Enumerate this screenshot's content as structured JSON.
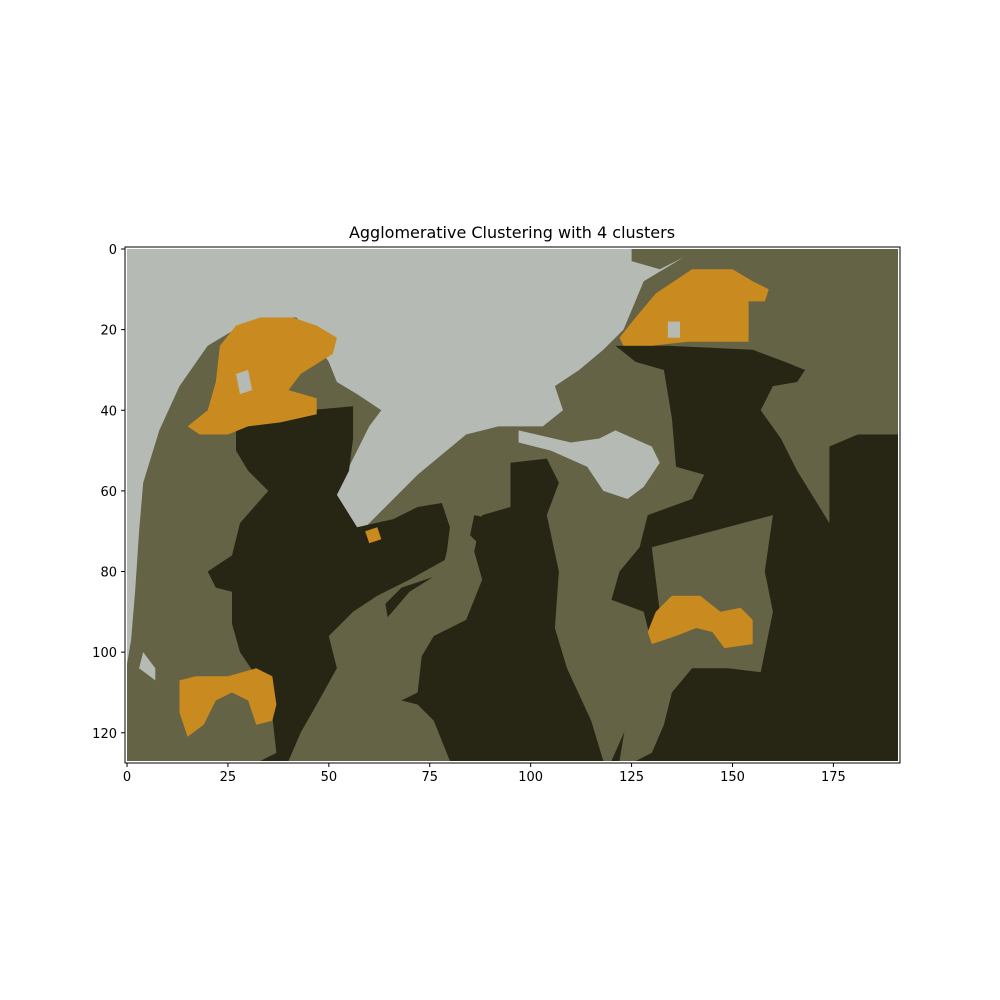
{
  "chart_data": {
    "type": "heatmap",
    "title": "Agglomerative Clustering with 4 clusters",
    "xlabel": "",
    "ylabel": "",
    "xlim": [
      -0.5,
      191.5
    ],
    "ylim": [
      127.5,
      -0.5
    ],
    "xticks": [
      0,
      25,
      50,
      75,
      100,
      125,
      150,
      175
    ],
    "yticks": [
      0,
      20,
      40,
      60,
      80,
      100,
      120
    ],
    "xtick_labels": [
      "0",
      "25",
      "50",
      "75",
      "100",
      "125",
      "150",
      "175"
    ],
    "ytick_labels": [
      "0",
      "20",
      "40",
      "60",
      "80",
      "100",
      "120"
    ],
    "image_shape": [
      128,
      192
    ],
    "grid": false,
    "cluster_colors": {
      "sky": "#b5bab4",
      "midtone": "#646346",
      "dark": "#272615",
      "orange": "#c98a20"
    },
    "regions": [
      {
        "cluster": "midtone",
        "points": [
          [
            0,
            0
          ],
          [
            191,
            0
          ],
          [
            191,
            127
          ],
          [
            0,
            127
          ]
        ]
      },
      {
        "cluster": "sky",
        "points": [
          [
            0,
            0
          ],
          [
            125,
            0
          ],
          [
            125,
            3
          ],
          [
            132,
            5
          ],
          [
            138,
            2
          ],
          [
            128,
            8
          ],
          [
            123,
            20
          ],
          [
            118,
            25
          ],
          [
            112,
            30
          ],
          [
            106,
            34
          ],
          [
            108,
            40
          ],
          [
            103,
            44
          ],
          [
            92,
            44
          ],
          [
            84,
            46
          ],
          [
            72,
            56
          ],
          [
            62,
            66
          ],
          [
            58,
            70
          ],
          [
            55,
            68
          ],
          [
            51,
            62
          ],
          [
            54,
            56
          ],
          [
            57,
            50
          ],
          [
            60,
            44
          ],
          [
            63,
            40
          ],
          [
            57,
            36
          ],
          [
            52,
            33
          ],
          [
            50,
            28
          ],
          [
            46,
            22
          ],
          [
            42,
            17
          ],
          [
            37,
            17
          ],
          [
            30,
            18
          ],
          [
            20,
            24
          ],
          [
            13,
            34
          ],
          [
            8,
            45
          ],
          [
            4,
            58
          ],
          [
            3,
            70
          ],
          [
            2,
            85
          ],
          [
            1,
            97
          ],
          [
            0,
            103
          ]
        ]
      },
      {
        "cluster": "sky",
        "points": [
          [
            97,
            45
          ],
          [
            110,
            48
          ],
          [
            117,
            47
          ],
          [
            121,
            45
          ],
          [
            130,
            49
          ],
          [
            132,
            53
          ],
          [
            128,
            59
          ],
          [
            124,
            62
          ],
          [
            118,
            60
          ],
          [
            114,
            54
          ],
          [
            105,
            50
          ],
          [
            97,
            48
          ]
        ]
      },
      {
        "cluster": "sky",
        "points": [
          [
            4,
            100
          ],
          [
            7,
            104
          ],
          [
            7,
            107
          ],
          [
            3,
            104
          ]
        ]
      },
      {
        "cluster": "dark",
        "points": [
          [
            27,
            44
          ],
          [
            35,
            43
          ],
          [
            45,
            40
          ],
          [
            56,
            39
          ],
          [
            56,
            47
          ],
          [
            55,
            55
          ],
          [
            52,
            61
          ],
          [
            57,
            69
          ],
          [
            66,
            67
          ],
          [
            72,
            64
          ],
          [
            78,
            63
          ],
          [
            80,
            69
          ],
          [
            79,
            77
          ],
          [
            70,
            82
          ],
          [
            62,
            86
          ],
          [
            56,
            90
          ],
          [
            50,
            96
          ],
          [
            52,
            104
          ],
          [
            47,
            113
          ],
          [
            43,
            120
          ],
          [
            40,
            127
          ],
          [
            18,
            127
          ],
          [
            20,
            122
          ],
          [
            31,
            120
          ],
          [
            34,
            112
          ],
          [
            32,
            106
          ],
          [
            28,
            100
          ],
          [
            26,
            93
          ],
          [
            26,
            85
          ],
          [
            22,
            84
          ],
          [
            20,
            80
          ],
          [
            26,
            76
          ],
          [
            28,
            68
          ],
          [
            35,
            60
          ],
          [
            30,
            55
          ],
          [
            27,
            50
          ]
        ]
      },
      {
        "cluster": "dark",
        "points": [
          [
            121,
            24
          ],
          [
            134,
            24
          ],
          [
            155,
            25
          ],
          [
            163,
            28
          ],
          [
            168,
            30
          ],
          [
            166,
            33
          ],
          [
            160,
            34
          ],
          [
            157,
            40
          ],
          [
            162,
            47
          ],
          [
            166,
            55
          ],
          [
            174,
            68
          ],
          [
            174,
            49
          ],
          [
            181,
            46
          ],
          [
            191,
            46
          ],
          [
            191,
            127
          ],
          [
            120,
            127
          ],
          [
            124,
            118
          ],
          [
            126,
            110
          ],
          [
            130,
            98
          ],
          [
            128,
            90
          ],
          [
            120,
            87
          ],
          [
            122,
            80
          ],
          [
            127,
            74
          ],
          [
            129,
            66
          ],
          [
            140,
            62
          ],
          [
            143,
            56
          ],
          [
            136,
            54
          ],
          [
            135,
            42
          ],
          [
            133,
            30
          ],
          [
            126,
            28
          ]
        ]
      },
      {
        "cluster": "dark",
        "points": [
          [
            95,
            53
          ],
          [
            104,
            52
          ],
          [
            107,
            58
          ],
          [
            104,
            66
          ],
          [
            107,
            80
          ],
          [
            106,
            94
          ],
          [
            109,
            104
          ],
          [
            115,
            117
          ],
          [
            118,
            127
          ],
          [
            80,
            127
          ],
          [
            76,
            117
          ],
          [
            72,
            113
          ],
          [
            68,
            112
          ],
          [
            66,
            100
          ],
          [
            64,
            88
          ],
          [
            68,
            84
          ],
          [
            80,
            80
          ],
          [
            86,
            75
          ],
          [
            88,
            66
          ],
          [
            95,
            64
          ]
        ]
      },
      {
        "cluster": "dark",
        "points": [
          [
            86,
            66
          ],
          [
            91,
            67
          ],
          [
            92,
            72
          ],
          [
            88,
            74
          ],
          [
            85,
            71
          ]
        ]
      },
      {
        "cluster": "dark",
        "points": [
          [
            143,
            78
          ],
          [
            147,
            77
          ],
          [
            149,
            81
          ],
          [
            146,
            84
          ],
          [
            142,
            82
          ]
        ]
      },
      {
        "cluster": "midtone",
        "points": [
          [
            130,
            74
          ],
          [
            160,
            66
          ],
          [
            158,
            80
          ],
          [
            160,
            90
          ],
          [
            157,
            105
          ],
          [
            149,
            104
          ],
          [
            140,
            104
          ],
          [
            135,
            110
          ],
          [
            133,
            118
          ],
          [
            130,
            125
          ],
          [
            126,
            127
          ],
          [
            122,
            127
          ],
          [
            124,
            115
          ],
          [
            128,
            100
          ],
          [
            132,
            90
          ]
        ]
      },
      {
        "cluster": "midtone",
        "points": [
          [
            80,
            72
          ],
          [
            86,
            75
          ],
          [
            88,
            82
          ],
          [
            84,
            92
          ],
          [
            80,
            94
          ],
          [
            76,
            96
          ],
          [
            73,
            101
          ],
          [
            72,
            110
          ],
          [
            68,
            112
          ],
          [
            66,
            102
          ],
          [
            64,
            92
          ],
          [
            70,
            85
          ],
          [
            78,
            80
          ]
        ]
      },
      {
        "cluster": "midtone",
        "points": [
          [
            17,
            117
          ],
          [
            22,
            112
          ],
          [
            30,
            110
          ],
          [
            36,
            116
          ],
          [
            37,
            125
          ],
          [
            33,
            127
          ],
          [
            18,
            127
          ]
        ]
      },
      {
        "cluster": "orange",
        "points": [
          [
            15,
            44
          ],
          [
            20,
            40
          ],
          [
            22,
            33
          ],
          [
            23,
            24
          ],
          [
            27,
            19
          ],
          [
            33,
            17
          ],
          [
            41,
            17
          ],
          [
            47,
            19
          ],
          [
            52,
            22
          ],
          [
            51,
            26
          ],
          [
            43,
            31
          ],
          [
            40,
            35
          ],
          [
            47,
            37
          ],
          [
            47,
            41
          ],
          [
            38,
            43
          ],
          [
            30,
            44
          ],
          [
            25,
            46
          ],
          [
            18,
            46
          ]
        ]
      },
      {
        "cluster": "orange",
        "points": [
          [
            122,
            22
          ],
          [
            126,
            17
          ],
          [
            131,
            11
          ],
          [
            140,
            5
          ],
          [
            150,
            5
          ],
          [
            155,
            8
          ],
          [
            159,
            10
          ],
          [
            158,
            13
          ],
          [
            154,
            13
          ],
          [
            154,
            23
          ],
          [
            139,
            23
          ],
          [
            130,
            24
          ],
          [
            123,
            24
          ]
        ]
      },
      {
        "cluster": "orange",
        "points": [
          [
            129,
            95
          ],
          [
            131,
            90
          ],
          [
            135,
            86
          ],
          [
            142,
            86
          ],
          [
            147,
            90
          ],
          [
            152,
            89
          ],
          [
            155,
            92
          ],
          [
            155,
            98
          ],
          [
            148,
            99
          ],
          [
            145,
            95
          ],
          [
            141,
            94
          ],
          [
            136,
            96
          ],
          [
            130,
            98
          ]
        ]
      },
      {
        "cluster": "orange",
        "points": [
          [
            13,
            107
          ],
          [
            17,
            106
          ],
          [
            25,
            106
          ],
          [
            32,
            104
          ],
          [
            36,
            106
          ],
          [
            37,
            113
          ],
          [
            36,
            117
          ],
          [
            32,
            118
          ],
          [
            30,
            112
          ],
          [
            26,
            110
          ],
          [
            22,
            112
          ],
          [
            19,
            118
          ],
          [
            15,
            121
          ],
          [
            13,
            115
          ]
        ]
      },
      {
        "cluster": "orange",
        "points": [
          [
            59,
            70
          ],
          [
            62,
            69
          ],
          [
            63,
            72
          ],
          [
            60,
            73
          ]
        ]
      },
      {
        "cluster": "sky",
        "points": [
          [
            27,
            31
          ],
          [
            30,
            30
          ],
          [
            31,
            35
          ],
          [
            28,
            36
          ]
        ]
      },
      {
        "cluster": "sky",
        "points": [
          [
            134,
            18
          ],
          [
            137,
            18
          ],
          [
            137,
            22
          ],
          [
            134,
            22
          ]
        ]
      }
    ]
  }
}
